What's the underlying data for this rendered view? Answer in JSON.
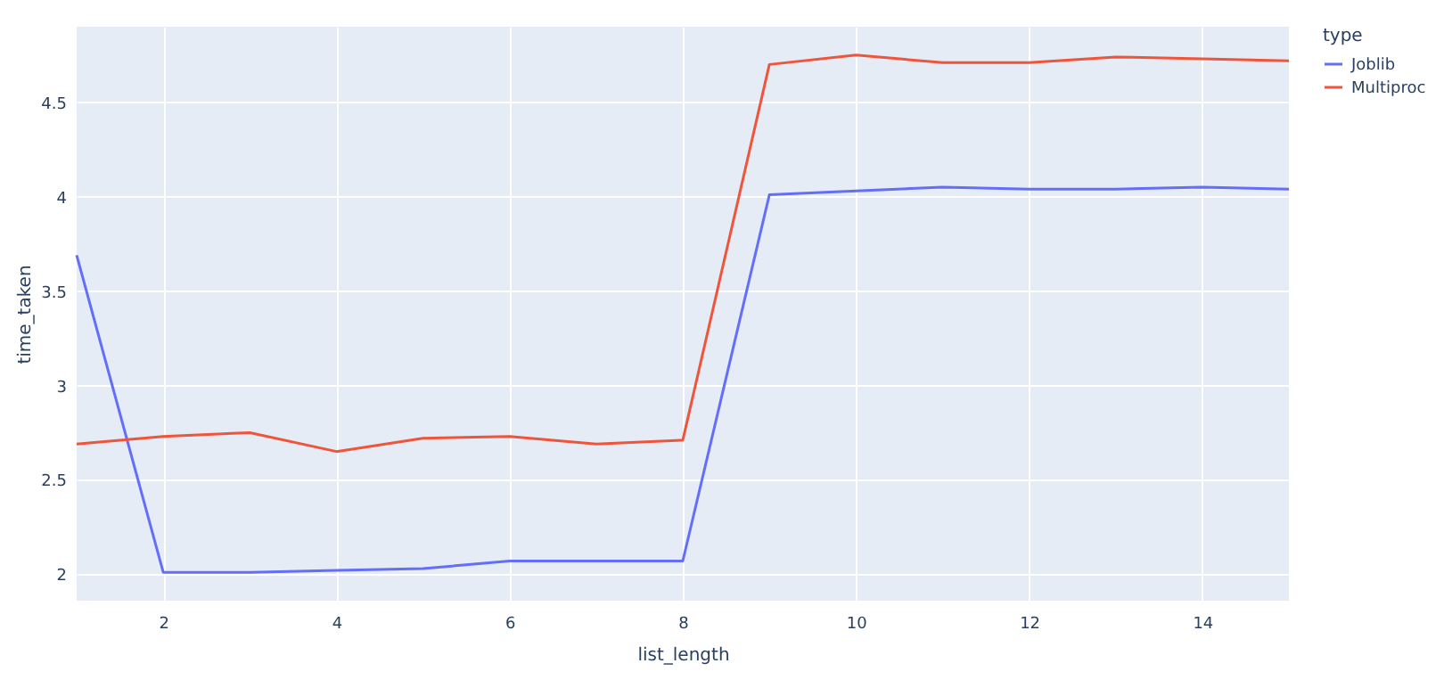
{
  "chart_data": {
    "type": "line",
    "xlabel": "list_length",
    "ylabel": "time_taken",
    "legend_title": "type",
    "x": [
      1,
      2,
      3,
      4,
      5,
      6,
      7,
      8,
      9,
      10,
      11,
      12,
      13,
      14,
      15
    ],
    "series": [
      {
        "name": "Joblib",
        "color": "#636efa",
        "values": [
          3.69,
          2.01,
          2.01,
          2.02,
          2.03,
          2.07,
          2.07,
          2.07,
          4.01,
          4.03,
          4.05,
          4.04,
          4.04,
          4.05,
          4.04
        ]
      },
      {
        "name": "Multiproc",
        "color": "#ef553b",
        "values": [
          2.69,
          2.73,
          2.75,
          2.65,
          2.72,
          2.73,
          2.69,
          2.71,
          4.7,
          4.75,
          4.71,
          4.71,
          4.74,
          4.73,
          4.72
        ]
      }
    ],
    "xlim": [
      1,
      15
    ],
    "xticks": [
      2,
      4,
      6,
      8,
      10,
      12,
      14
    ],
    "ylim": [
      1.86,
      4.9
    ],
    "yticks": [
      2,
      2.5,
      3,
      3.5,
      4,
      4.5
    ],
    "grid": true,
    "legend": "top right",
    "marker": "none",
    "line_style": "solid"
  }
}
